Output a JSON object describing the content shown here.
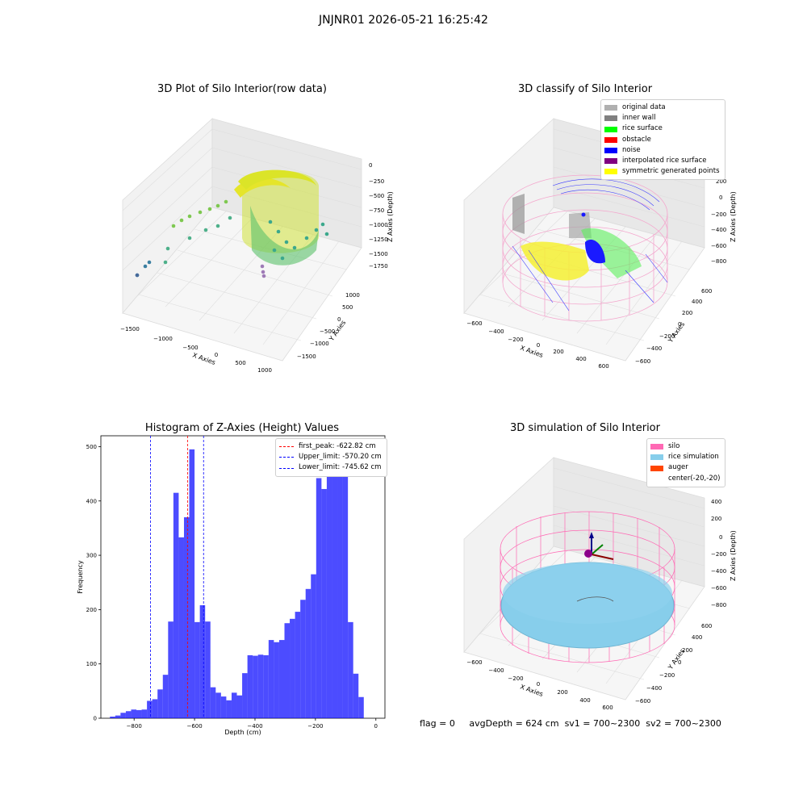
{
  "suptitle": "JNJNR01 2026-05-21 16:25:42",
  "footer": {
    "flag": "flag = 0",
    "avg_depth": "avgDepth = 624 cm",
    "sv1": "sv1 = 700~2300",
    "sv2": "sv2 = 700~2300"
  },
  "panels": {
    "raw": {
      "title": "3D Plot of Silo Interior(row data)",
      "xlabel": "X Axies",
      "ylabel": "Y Axies",
      "zlabel": "Z Axies (Depth)",
      "x_ticks": [
        "−1500",
        "−1000",
        "−500",
        "0",
        "500",
        "1000"
      ],
      "y_ticks": [
        "1000",
        "500",
        "0",
        "−500",
        "−1000",
        "−1500"
      ],
      "z_ticks": [
        "0",
        "−250",
        "−500",
        "−750",
        "−1000",
        "−1250",
        "−1500",
        "−1750"
      ]
    },
    "classify": {
      "title": "3D classify of Silo Interior",
      "xlabel": "X Axies",
      "ylabel": "Y Axies",
      "zlabel": "Z Axies (Depth)",
      "x_ticks": [
        "−600",
        "−400",
        "−200",
        "0",
        "200",
        "400",
        "600"
      ],
      "y_ticks": [
        "600",
        "400",
        "200",
        "0",
        "−200",
        "−400",
        "−600"
      ],
      "z_ticks": [
        "200",
        "0",
        "−200",
        "−400",
        "−600",
        "−800"
      ],
      "legend": [
        {
          "label": "original data",
          "color": "#b0b0b0"
        },
        {
          "label": "inner wall",
          "color": "#808080"
        },
        {
          "label": "rice surface",
          "color": "#00ff00"
        },
        {
          "label": "obstacle",
          "color": "#ff0000"
        },
        {
          "label": "noise",
          "color": "#0000ff"
        },
        {
          "label": "interpolated rice surface",
          "color": "#800080"
        },
        {
          "label": "symmetric generated points",
          "color": "#ffff00"
        }
      ]
    },
    "histogram": {
      "title": "Histogram of Z-Axies (Height) Values",
      "legend": [
        {
          "label": "first_peak: -622.82 cm",
          "color": "#ff0000"
        },
        {
          "label": "Upper_limit: -570.20 cm",
          "color": "#0000ff"
        },
        {
          "label": "Lower_limit: -745.62 cm",
          "color": "#0000ff"
        }
      ]
    },
    "simulation": {
      "title": "3D simulation of Silo Interior",
      "xlabel": "X Axies",
      "ylabel": "Y Axies",
      "zlabel": "Z Axies (Depth)",
      "x_ticks": [
        "−600",
        "−400",
        "−200",
        "0",
        "200",
        "400",
        "600"
      ],
      "y_ticks": [
        "600",
        "400",
        "200",
        "0",
        "−200",
        "−400",
        "−600"
      ],
      "z_ticks": [
        "400",
        "200",
        "0",
        "−200",
        "−400",
        "−600",
        "−800"
      ],
      "legend": [
        {
          "label": "silo",
          "color": "#ff69b4"
        },
        {
          "label": "rice simulation",
          "color": "#87ceeb"
        },
        {
          "label": "auger",
          "color": "#ff4500"
        },
        {
          "label": "center(-20,-20)",
          "color": ""
        }
      ]
    }
  },
  "chart_data": [
    {
      "type": "bar",
      "title": "Histogram of Z-Axies (Height) Values",
      "xlabel": "Depth (cm)",
      "ylabel": "Frequency",
      "xlim": [
        -910,
        30
      ],
      "ylim": [
        0,
        520
      ],
      "x_ticks": [
        -800,
        -600,
        -400,
        -200,
        0
      ],
      "y_ticks": [
        0,
        100,
        200,
        300,
        400,
        500
      ],
      "bin_start": -880,
      "bin_width": 17.5,
      "color": "#0000ff",
      "values": [
        3,
        5,
        10,
        13,
        16,
        15,
        16,
        32,
        35,
        53,
        80,
        178,
        415,
        333,
        370,
        495,
        177,
        208,
        178,
        57,
        47,
        40,
        33,
        47,
        42,
        83,
        116,
        115,
        117,
        116,
        144,
        140,
        144,
        175,
        183,
        196,
        218,
        238,
        265,
        442,
        422,
        455,
        445,
        447,
        484,
        177,
        82,
        39
      ],
      "vlines": [
        {
          "x": -622.82,
          "color": "#ff0000",
          "label": "first_peak: -622.82 cm"
        },
        {
          "x": -570.2,
          "color": "#0000ff",
          "label": "Upper_limit: -570.20 cm"
        },
        {
          "x": -745.62,
          "color": "#0000ff",
          "label": "Lower_limit: -745.62 cm"
        }
      ],
      "grid": false,
      "legend_position": "upper right"
    }
  ]
}
